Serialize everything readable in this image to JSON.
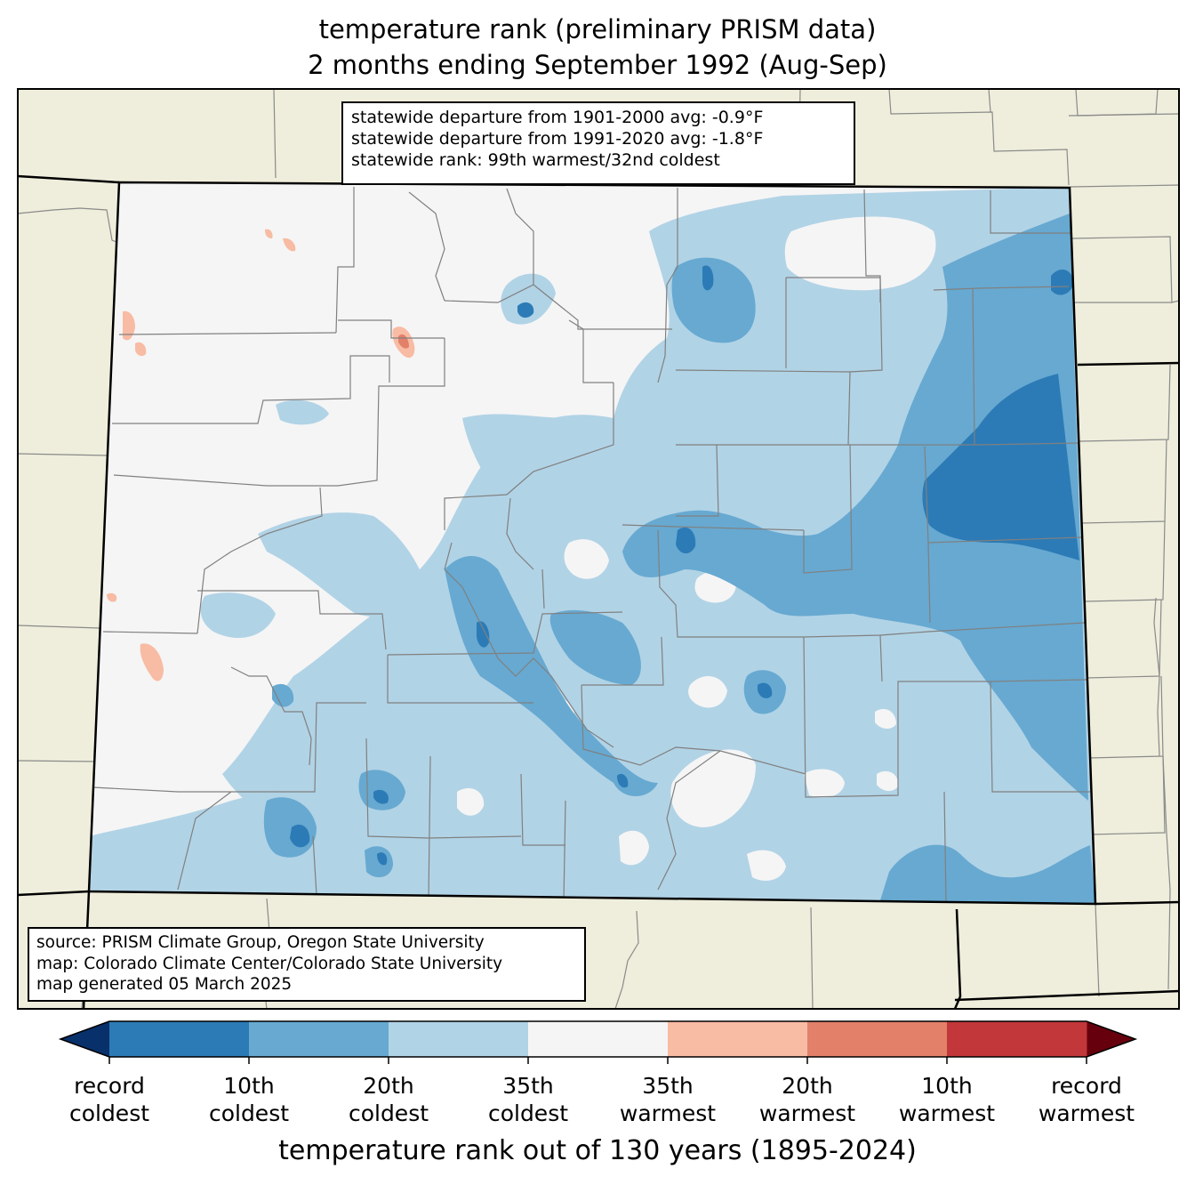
{
  "title": {
    "line1": "temperature rank (preliminary PRISM data)",
    "line2": "2 months ending September 1992 (Aug-Sep)"
  },
  "stats": {
    "line1": "statewide departure from 1901-2000 avg: -0.9°F",
    "line2": "statewide departure from 1991-2020 avg: -1.8°F",
    "line3": "statewide rank: 99th warmest/32nd coldest"
  },
  "source": {
    "line1": "source: PRISM Climate Group, Oregon State University",
    "line2": "map: Colorado Climate Center/Colorado State University",
    "line3": "map generated 05 March 2025"
  },
  "colorbar": {
    "label": "temperature rank out of 130 years (1895-2024)",
    "under_color": "#08306b",
    "over_color": "#67000d",
    "bins": [
      {
        "color": "#2c7bb6"
      },
      {
        "color": "#67a9d1"
      },
      {
        "color": "#b1d3e6"
      },
      {
        "color": "#f5f5f5"
      },
      {
        "color": "#f8bba4"
      },
      {
        "color": "#e2806a"
      },
      {
        "color": "#c1373a"
      }
    ],
    "ticks": [
      {
        "line1": "record",
        "line2": "coldest"
      },
      {
        "line1": "10th",
        "line2": "coldest"
      },
      {
        "line1": "20th",
        "line2": "coldest"
      },
      {
        "line1": "35th",
        "line2": "coldest"
      },
      {
        "line1": "35th",
        "line2": "warmest"
      },
      {
        "line1": "20th",
        "line2": "warmest"
      },
      {
        "line1": "10th",
        "line2": "warmest"
      },
      {
        "line1": "record",
        "line2": "warmest"
      }
    ]
  },
  "map_colors": {
    "land_outside": "#efeedc",
    "state_fill": "#f5f5f5",
    "cold35": "#b1d3e6",
    "cold20": "#67a9d1",
    "cold10": "#2c7bb6",
    "warm35": "#f8bba4",
    "warm20": "#e2806a"
  }
}
